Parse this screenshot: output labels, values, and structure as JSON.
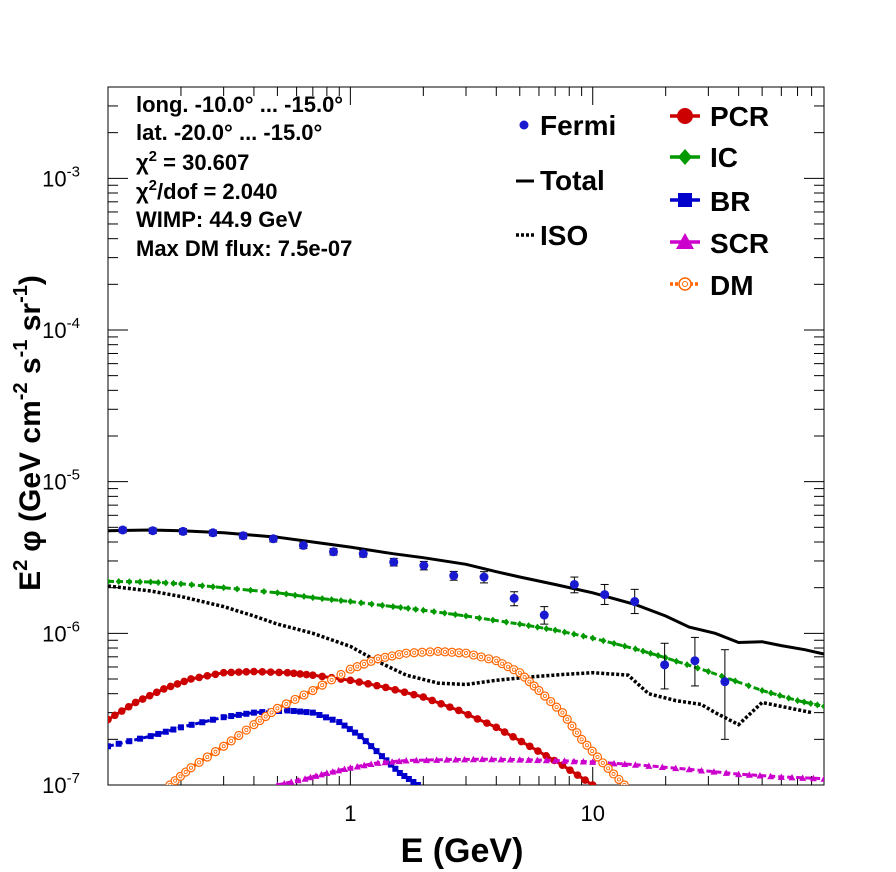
{
  "chart_data": {
    "type": "line",
    "title": "",
    "xlabel": "E (GeV)",
    "ylabel_parts": {
      "pre": "E",
      "pre_sup": "2",
      "phi": "φ (GeV cm",
      "cm_sup": "-2",
      "s": " s",
      "s_sup": "-1",
      "sr": " sr",
      "sr_sup": "-1",
      "close": ")"
    },
    "x_log": true,
    "y_log": true,
    "xlim": [
      0.1,
      90
    ],
    "ylim": [
      1e-07,
      0.004
    ],
    "x_ticks": [
      {
        "v": 1,
        "label": "1"
      },
      {
        "v": 10,
        "label": "10"
      }
    ],
    "y_ticks": [
      {
        "v": 1e-07,
        "base": "10",
        "exp": "-7"
      },
      {
        "v": 1e-06,
        "base": "10",
        "exp": "-6"
      },
      {
        "v": 1e-05,
        "base": "10",
        "exp": "-5"
      },
      {
        "v": 0.0001,
        "base": "10",
        "exp": "-4"
      },
      {
        "v": 0.001,
        "base": "10",
        "exp": "-3"
      }
    ],
    "info": {
      "line1": "long. -10.0° ... -15.0°",
      "line2": "lat. -20.0° ... -15.0°",
      "chi2_sym": "χ",
      "chi2_sup": "2",
      "chi2_val": " = 30.607",
      "chi2dof_sup": "2",
      "chi2dof_val": "/dof = 2.040",
      "line5": "WIMP: 44.9 GeV",
      "line6": "Max DM flux: 7.5e-07"
    },
    "legend": {
      "fermi": "Fermi",
      "total": "Total",
      "iso": "ISO",
      "pcr": "PCR",
      "ic": "IC",
      "br": "BR",
      "scr": "SCR",
      "dm": "DM"
    },
    "colors": {
      "fermi": "#1a1ad0",
      "total": "#000000",
      "iso": "#000000",
      "pcr": "#cc0000",
      "ic": "#009900",
      "br": "#0000cc",
      "scr": "#cc00cc",
      "dm": "#ff6600"
    },
    "fermi": [
      {
        "x": 0.115,
        "y": 4.8e-06,
        "err": [
          4.6e-06,
          5e-06
        ]
      },
      {
        "x": 0.153,
        "y": 4.75e-06,
        "err": [
          4.55e-06,
          4.95e-06
        ]
      },
      {
        "x": 0.204,
        "y": 4.7e-06,
        "err": [
          4.5e-06,
          4.9e-06
        ]
      },
      {
        "x": 0.271,
        "y": 4.6e-06,
        "err": [
          4.4e-06,
          4.8e-06
        ]
      },
      {
        "x": 0.361,
        "y": 4.4e-06,
        "err": [
          4.2e-06,
          4.6e-06
        ]
      },
      {
        "x": 0.481,
        "y": 4.2e-06,
        "err": [
          4e-06,
          4.4e-06
        ]
      },
      {
        "x": 0.64,
        "y": 3.8e-06,
        "err": [
          3.62e-06,
          3.98e-06
        ]
      },
      {
        "x": 0.852,
        "y": 3.45e-06,
        "err": [
          3.28e-06,
          3.62e-06
        ]
      },
      {
        "x": 1.13,
        "y": 3.35e-06,
        "err": [
          3.18e-06,
          3.52e-06
        ]
      },
      {
        "x": 1.51,
        "y": 2.95e-06,
        "err": [
          2.78e-06,
          3.12e-06
        ]
      },
      {
        "x": 2.01,
        "y": 2.8e-06,
        "err": [
          2.62e-06,
          2.98e-06
        ]
      },
      {
        "x": 2.67,
        "y": 2.4e-06,
        "err": [
          2.24e-06,
          2.56e-06
        ]
      },
      {
        "x": 3.56,
        "y": 2.35e-06,
        "err": [
          2.15e-06,
          2.55e-06
        ]
      },
      {
        "x": 4.74,
        "y": 1.7e-06,
        "err": [
          1.52e-06,
          1.88e-06
        ]
      },
      {
        "x": 6.31,
        "y": 1.32e-06,
        "err": [
          1.15e-06,
          1.5e-06
        ]
      },
      {
        "x": 8.4,
        "y": 2.1e-06,
        "err": [
          1.85e-06,
          2.35e-06
        ]
      },
      {
        "x": 11.2,
        "y": 1.8e-06,
        "err": [
          1.55e-06,
          2.1e-06
        ]
      },
      {
        "x": 14.9,
        "y": 1.62e-06,
        "err": [
          1.35e-06,
          1.95e-06
        ]
      },
      {
        "x": 19.8,
        "y": 6.2e-07,
        "err": [
          4.3e-07,
          8.6e-07
        ]
      },
      {
        "x": 26.4,
        "y": 6.6e-07,
        "err": [
          4.5e-07,
          9.4e-07
        ]
      },
      {
        "x": 35.1,
        "y": 4.8e-07,
        "err": [
          2e-07,
          7.8e-07
        ]
      }
    ],
    "series": [
      {
        "key": "total",
        "style": "solid",
        "marker": "none",
        "points": [
          [
            0.1,
            4.75e-06
          ],
          [
            0.15,
            4.8e-06
          ],
          [
            0.2,
            4.75e-06
          ],
          [
            0.3,
            4.6e-06
          ],
          [
            0.5,
            4.3e-06
          ],
          [
            0.7,
            4e-06
          ],
          [
            1.0,
            3.7e-06
          ],
          [
            1.5,
            3.35e-06
          ],
          [
            2.0,
            3.15e-06
          ],
          [
            3.0,
            2.85e-06
          ],
          [
            4.0,
            2.55e-06
          ],
          [
            5.0,
            2.35e-06
          ],
          [
            7.0,
            2.1e-06
          ],
          [
            10.0,
            1.85e-06
          ],
          [
            15.0,
            1.55e-06
          ],
          [
            20.0,
            1.3e-06
          ],
          [
            25.0,
            1.1e-06
          ],
          [
            32.0,
            1e-06
          ],
          [
            40.0,
            8.7e-07
          ],
          [
            50.0,
            8.8e-07
          ],
          [
            60.0,
            8.3e-07
          ],
          [
            75.0,
            7.8e-07
          ],
          [
            90.0,
            7.3e-07
          ]
        ]
      },
      {
        "key": "iso",
        "style": "dotted",
        "marker": "none",
        "points": [
          [
            0.1,
            2.05e-06
          ],
          [
            0.15,
            1.9e-06
          ],
          [
            0.2,
            1.75e-06
          ],
          [
            0.3,
            1.5e-06
          ],
          [
            0.4,
            1.3e-06
          ],
          [
            0.5,
            1.15e-06
          ],
          [
            0.7,
            1e-06
          ],
          [
            1.0,
            8.2e-07
          ],
          [
            1.3,
            6.5e-07
          ],
          [
            1.7,
            5.3e-07
          ],
          [
            2.3,
            4.7e-07
          ],
          [
            3.0,
            4.6e-07
          ],
          [
            4.0,
            4.9e-07
          ],
          [
            5.5,
            5.15e-07
          ],
          [
            7.5,
            5.35e-07
          ],
          [
            10.0,
            5.5e-07
          ],
          [
            14.0,
            5.3e-07
          ],
          [
            17.0,
            4e-07
          ],
          [
            22.0,
            3.6e-07
          ],
          [
            28.0,
            3.4e-07
          ],
          [
            32.0,
            3e-07
          ],
          [
            40.0,
            2.5e-07
          ],
          [
            50.0,
            3.5e-07
          ],
          [
            60.0,
            3.3e-07
          ],
          [
            80.0,
            3e-07
          ]
        ]
      },
      {
        "key": "ic",
        "style": "dashed",
        "marker": "diamond",
        "points": [
          [
            0.1,
            2.2e-06
          ],
          [
            0.15,
            2.18e-06
          ],
          [
            0.2,
            2.12e-06
          ],
          [
            0.3,
            2e-06
          ],
          [
            0.5,
            1.85e-06
          ],
          [
            0.7,
            1.72e-06
          ],
          [
            1.0,
            1.62e-06
          ],
          [
            1.5,
            1.5e-06
          ],
          [
            2.0,
            1.42e-06
          ],
          [
            3.0,
            1.3e-06
          ],
          [
            5.0,
            1.15e-06
          ],
          [
            7.0,
            1.05e-06
          ],
          [
            10.0,
            9.3e-07
          ],
          [
            15.0,
            7.9e-07
          ],
          [
            20.0,
            6.9e-07
          ],
          [
            30.0,
            5.6e-07
          ],
          [
            50.0,
            4.2e-07
          ],
          [
            70.0,
            3.6e-07
          ],
          [
            90.0,
            3.3e-07
          ]
        ]
      },
      {
        "key": "pcr",
        "style": "solid",
        "marker": "circle",
        "points": [
          [
            0.1,
            2.7e-07
          ],
          [
            0.13,
            3.5e-07
          ],
          [
            0.17,
            4.3e-07
          ],
          [
            0.22,
            5e-07
          ],
          [
            0.3,
            5.5e-07
          ],
          [
            0.4,
            5.6e-07
          ],
          [
            0.55,
            5.5e-07
          ],
          [
            0.7,
            5.3e-07
          ],
          [
            1.0,
            4.9e-07
          ],
          [
            1.4,
            4.4e-07
          ],
          [
            2.0,
            3.8e-07
          ],
          [
            2.8,
            3.1e-07
          ],
          [
            4.0,
            2.4e-07
          ],
          [
            5.5,
            1.8e-07
          ],
          [
            7.5,
            1.35e-07
          ],
          [
            10.0,
            1e-07
          ]
        ]
      },
      {
        "key": "br",
        "style": "dashed",
        "marker": "square",
        "points": [
          [
            0.1,
            1.8e-07
          ],
          [
            0.15,
            2.1e-07
          ],
          [
            0.2,
            2.4e-07
          ],
          [
            0.3,
            2.8e-07
          ],
          [
            0.4,
            3e-07
          ],
          [
            0.55,
            3.1e-07
          ],
          [
            0.7,
            3e-07
          ],
          [
            0.9,
            2.6e-07
          ],
          [
            1.1,
            2.1e-07
          ],
          [
            1.35,
            1.55e-07
          ],
          [
            1.6,
            1.2e-07
          ],
          [
            1.9,
            1e-07
          ]
        ]
      },
      {
        "key": "scr",
        "style": "dashed",
        "marker": "triangle",
        "points": [
          [
            0.5,
            1e-07
          ],
          [
            0.65,
            1.1e-07
          ],
          [
            0.8,
            1.2e-07
          ],
          [
            1.0,
            1.3e-07
          ],
          [
            1.3,
            1.4e-07
          ],
          [
            1.7,
            1.45e-07
          ],
          [
            2.5,
            1.47e-07
          ],
          [
            3.5,
            1.48e-07
          ],
          [
            5.0,
            1.47e-07
          ],
          [
            7.0,
            1.45e-07
          ],
          [
            10.0,
            1.42e-07
          ],
          [
            15.0,
            1.36e-07
          ],
          [
            25.0,
            1.27e-07
          ],
          [
            40.0,
            1.18e-07
          ],
          [
            60.0,
            1.13e-07
          ],
          [
            90.0,
            1.1e-07
          ]
        ]
      },
      {
        "key": "dm",
        "style": "dotted",
        "marker": "ocircle",
        "points": [
          [
            0.18,
            1e-07
          ],
          [
            0.22,
            1.3e-07
          ],
          [
            0.3,
            1.8e-07
          ],
          [
            0.4,
            2.5e-07
          ],
          [
            0.5,
            3.2e-07
          ],
          [
            0.7,
            4.2e-07
          ],
          [
            1.0,
            5.8e-07
          ],
          [
            1.3,
            6.8e-07
          ],
          [
            1.7,
            7.4e-07
          ],
          [
            2.3,
            7.6e-07
          ],
          [
            3.0,
            7.4e-07
          ],
          [
            4.0,
            6.6e-07
          ],
          [
            5.0,
            5.5e-07
          ],
          [
            6.0,
            4.2e-07
          ],
          [
            7.5,
            3e-07
          ],
          [
            9.0,
            2e-07
          ],
          [
            11.0,
            1.4e-07
          ],
          [
            13.5,
            1e-07
          ]
        ]
      }
    ]
  }
}
